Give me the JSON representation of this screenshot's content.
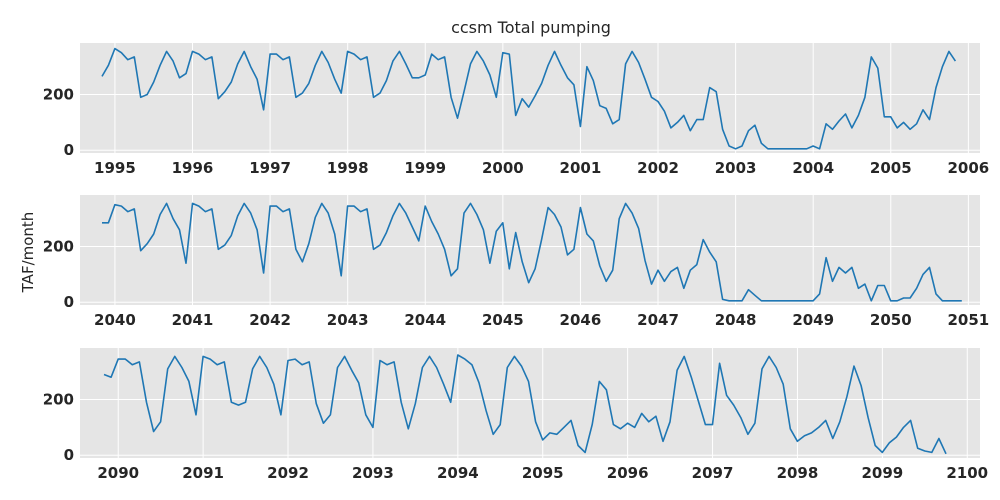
{
  "chart_data": {
    "type": "line",
    "title": "ccsm Total pumping",
    "ylabel": "TAF/month",
    "panels": [
      {
        "xlim": [
          1994.55,
          2006.15
        ],
        "ylim": [
          -10,
          385
        ],
        "x_ticks": [
          1995,
          1996,
          1997,
          1998,
          1999,
          2000,
          2001,
          2002,
          2003,
          2004,
          2005,
          2006
        ],
        "x_tick_labels": [
          "1995",
          "1996",
          "1997",
          "1998",
          "1999",
          "2000",
          "2001",
          "2002",
          "2003",
          "2004",
          "2005",
          "2006"
        ],
        "y_ticks": [
          0,
          200
        ],
        "y_tick_labels": [
          "0",
          "200"
        ],
        "series": [
          {
            "start": 1994.833,
            "step": 0.08333,
            "values": [
              265,
              305,
              365,
              350,
              325,
              335,
              190,
              200,
              245,
              305,
              355,
              320,
              260,
              275,
              355,
              345,
              325,
              335,
              185,
              210,
              245,
              310,
              355,
              300,
              255,
              145,
              345,
              345,
              325,
              335,
              190,
              205,
              240,
              305,
              355,
              315,
              255,
              205,
              355,
              345,
              325,
              335,
              190,
              205,
              250,
              320,
              355,
              310,
              260,
              260,
              270,
              345,
              325,
              335,
              190,
              115,
              210,
              310,
              355,
              320,
              270,
              190,
              350,
              345,
              125,
              185,
              155,
              195,
              240,
              305,
              355,
              305,
              260,
              235,
              85,
              300,
              250,
              160,
              150,
              95,
              110,
              310,
              355,
              315,
              255,
              190,
              175,
              140,
              80,
              100,
              125,
              70,
              110,
              110,
              225,
              210,
              75,
              15,
              5,
              15,
              70,
              90,
              25,
              5,
              5,
              5,
              5,
              5,
              5,
              5,
              15,
              5,
              95,
              75,
              105,
              130,
              80,
              125,
              190,
              335,
              295,
              120,
              120,
              80,
              100,
              75,
              95,
              145,
              110,
              225,
              300,
              355,
              320
            ]
          }
        ]
      },
      {
        "xlim": [
          2039.55,
          2051.15
        ],
        "ylim": [
          -10,
          385
        ],
        "x_ticks": [
          2040,
          2041,
          2042,
          2043,
          2044,
          2045,
          2046,
          2047,
          2048,
          2049,
          2050,
          2051
        ],
        "x_tick_labels": [
          "2040",
          "2041",
          "2042",
          "2043",
          "2044",
          "2045",
          "2046",
          "2047",
          "2048",
          "2049",
          "2050",
          "2051"
        ],
        "y_ticks": [
          0,
          200
        ],
        "y_tick_labels": [
          "0",
          "200"
        ],
        "series": [
          {
            "start": 2039.833,
            "step": 0.08333,
            "values": [
              285,
              285,
              350,
              345,
              325,
              335,
              185,
              210,
              245,
              315,
              355,
              300,
              260,
              140,
              355,
              345,
              325,
              335,
              190,
              205,
              240,
              310,
              355,
              320,
              260,
              105,
              345,
              345,
              325,
              335,
              190,
              145,
              210,
              305,
              355,
              320,
              245,
              95,
              345,
              345,
              325,
              335,
              190,
              205,
              250,
              310,
              355,
              320,
              270,
              220,
              345,
              290,
              245,
              190,
              95,
              120,
              320,
              355,
              315,
              260,
              140,
              255,
              285,
              120,
              250,
              145,
              70,
              120,
              225,
              340,
              315,
              270,
              170,
              190,
              340,
              245,
              220,
              130,
              75,
              115,
              300,
              355,
              320,
              265,
              150,
              65,
              115,
              75,
              110,
              125,
              50,
              115,
              135,
              225,
              180,
              145,
              10,
              5,
              5,
              5,
              45,
              25,
              5,
              5,
              5,
              5,
              5,
              5,
              5,
              5,
              5,
              30,
              160,
              75,
              125,
              105,
              125,
              50,
              65,
              5,
              60,
              60,
              5,
              5,
              15,
              15,
              50,
              100,
              125,
              30,
              5,
              5,
              5,
              5
            ]
          }
        ]
      },
      {
        "xlim": [
          2089.55,
          2100.15
        ],
        "ylim": [
          -10,
          385
        ],
        "x_ticks": [
          2090,
          2091,
          2092,
          2093,
          2094,
          2095,
          2096,
          2097,
          2098,
          2099,
          2100
        ],
        "x_tick_labels": [
          "2090",
          "2091",
          "2092",
          "2093",
          "2094",
          "2095",
          "2096",
          "2097",
          "2098",
          "2099",
          "2100"
        ],
        "y_ticks": [
          0,
          200
        ],
        "y_tick_labels": [
          "0",
          "200"
        ],
        "series": [
          {
            "start": 2089.833,
            "step": 0.08333,
            "values": [
              290,
              280,
              345,
              345,
              325,
              335,
              190,
              85,
              120,
              310,
              355,
              315,
              265,
              145,
              355,
              345,
              325,
              335,
              190,
              180,
              190,
              310,
              355,
              315,
              255,
              145,
              340,
              345,
              325,
              335,
              185,
              115,
              145,
              315,
              355,
              305,
              260,
              145,
              100,
              340,
              325,
              335,
              190,
              95,
              185,
              315,
              355,
              315,
              255,
              190,
              360,
              345,
              325,
              260,
              160,
              75,
              110,
              315,
              355,
              320,
              265,
              120,
              55,
              80,
              75,
              100,
              125,
              35,
              10,
              110,
              265,
              235,
              110,
              95,
              115,
              100,
              150,
              120,
              140,
              50,
              120,
              305,
              355,
              280,
              195,
              110,
              110,
              330,
              215,
              180,
              135,
              75,
              115,
              310,
              355,
              315,
              255,
              95,
              50,
              70,
              80,
              100,
              125,
              60,
              120,
              210,
              320,
              250,
              135,
              35,
              10,
              45,
              65,
              100,
              125,
              25,
              15,
              10,
              60,
              5
            ]
          }
        ]
      }
    ]
  }
}
